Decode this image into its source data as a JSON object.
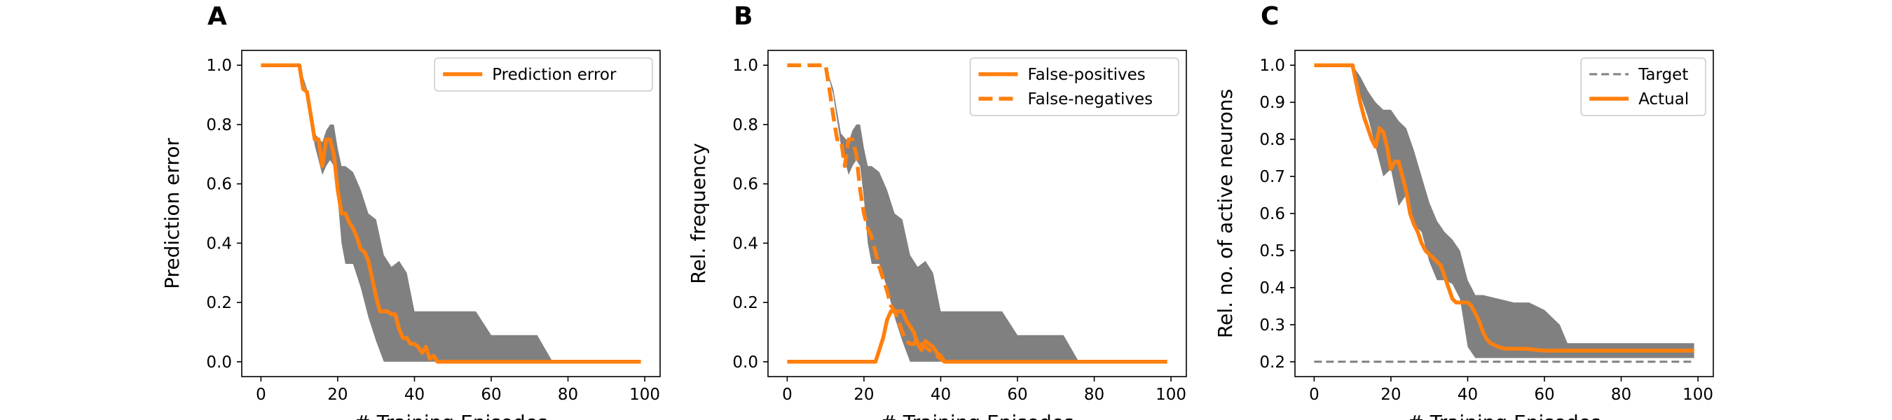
{
  "colors": {
    "accent": "#ff7f0e",
    "band": "#808080",
    "target": "#808080"
  },
  "chart_data": [
    {
      "panel_label": "A",
      "type": "line",
      "title": "",
      "xlabel": "# Training Episodes",
      "ylabel": "Prediction error",
      "xlim": [
        -5,
        104
      ],
      "ylim": [
        -0.05,
        1.05
      ],
      "xticks": [
        0,
        20,
        40,
        60,
        80,
        100
      ],
      "yticks": [
        0.0,
        0.2,
        0.4,
        0.6,
        0.8,
        1.0
      ],
      "ytick_labels": [
        "0.0",
        "0.2",
        "0.4",
        "0.6",
        "0.8",
        "1.0"
      ],
      "legend_position": "top-right",
      "grid": false,
      "band": {
        "x": [
          0,
          10,
          12,
          14,
          16,
          17,
          18,
          19,
          20,
          21,
          22,
          24,
          26,
          28,
          30,
          32,
          34,
          36,
          38,
          40,
          42,
          44,
          46,
          48,
          50,
          56,
          60,
          64,
          68,
          72,
          76,
          80,
          90,
          99
        ],
        "upper": [
          1.0,
          1.0,
          0.92,
          0.77,
          0.74,
          0.78,
          0.8,
          0.8,
          0.72,
          0.66,
          0.66,
          0.64,
          0.58,
          0.5,
          0.48,
          0.36,
          0.32,
          0.34,
          0.3,
          0.17,
          0.17,
          0.17,
          0.17,
          0.17,
          0.17,
          0.17,
          0.09,
          0.09,
          0.09,
          0.09,
          0.0,
          0.0,
          0.0,
          0.0
        ],
        "lower": [
          1.0,
          1.0,
          0.9,
          0.73,
          0.63,
          0.66,
          0.68,
          0.66,
          0.55,
          0.4,
          0.33,
          0.33,
          0.25,
          0.15,
          0.07,
          0.0,
          0.0,
          0.0,
          0.0,
          0.0,
          0.0,
          0.0,
          0.0,
          0.0,
          0.0,
          0.0,
          0.0,
          0.0,
          0.0,
          0.0,
          0.0,
          0.0,
          0.0,
          0.0
        ]
      },
      "series": [
        {
          "name": "Prediction error",
          "style": "solid",
          "x": [
            0,
            10,
            11,
            12,
            13,
            14,
            15,
            16,
            17,
            18,
            19,
            20,
            21,
            22,
            23,
            24,
            25,
            26,
            27,
            28,
            29,
            30,
            31,
            32,
            33,
            34,
            35,
            36,
            37,
            38,
            39,
            40,
            41,
            42,
            43,
            44,
            45,
            46,
            47,
            48,
            49,
            99
          ],
          "y": [
            1.0,
            1.0,
            0.92,
            0.91,
            0.83,
            0.75,
            0.75,
            0.66,
            0.75,
            0.75,
            0.7,
            0.58,
            0.5,
            0.5,
            0.47,
            0.45,
            0.42,
            0.38,
            0.37,
            0.34,
            0.28,
            0.22,
            0.17,
            0.17,
            0.17,
            0.16,
            0.16,
            0.11,
            0.08,
            0.08,
            0.06,
            0.06,
            0.05,
            0.03,
            0.05,
            0.01,
            0.02,
            0.0,
            0.0,
            0.0,
            0.0,
            0.0
          ]
        }
      ]
    },
    {
      "panel_label": "B",
      "type": "line",
      "title": "",
      "xlabel": "# Training Episodes",
      "ylabel": "Rel. frequency",
      "xlim": [
        -5,
        104
      ],
      "ylim": [
        -0.05,
        1.05
      ],
      "xticks": [
        0,
        20,
        40,
        60,
        80,
        100
      ],
      "yticks": [
        0.0,
        0.2,
        0.4,
        0.6,
        0.8,
        1.0
      ],
      "ytick_labels": [
        "0.0",
        "0.2",
        "0.4",
        "0.6",
        "0.8",
        "1.0"
      ],
      "legend_position": "top-right",
      "grid": false,
      "band": {
        "x": [
          0,
          10,
          12,
          14,
          16,
          17,
          18,
          19,
          20,
          21,
          22,
          24,
          26,
          28,
          30,
          32,
          34,
          36,
          38,
          40,
          42,
          44,
          46,
          48,
          50,
          56,
          60,
          64,
          68,
          72,
          76,
          80,
          90,
          99
        ],
        "upper": [
          1.0,
          1.0,
          0.92,
          0.77,
          0.74,
          0.78,
          0.8,
          0.8,
          0.72,
          0.66,
          0.66,
          0.64,
          0.58,
          0.5,
          0.48,
          0.36,
          0.32,
          0.34,
          0.3,
          0.17,
          0.17,
          0.17,
          0.17,
          0.17,
          0.17,
          0.17,
          0.09,
          0.09,
          0.09,
          0.09,
          0.0,
          0.0,
          0.0,
          0.0
        ],
        "lower": [
          1.0,
          1.0,
          0.9,
          0.73,
          0.63,
          0.66,
          0.68,
          0.66,
          0.55,
          0.4,
          0.33,
          0.33,
          0.25,
          0.15,
          0.07,
          0.0,
          0.0,
          0.0,
          0.0,
          0.0,
          0.0,
          0.0,
          0.0,
          0.0,
          0.0,
          0.0,
          0.0,
          0.0,
          0.0,
          0.0,
          0.0,
          0.0,
          0.0,
          0.0
        ]
      },
      "series": [
        {
          "name": "False-positives",
          "style": "solid",
          "x": [
            0,
            22,
            23,
            24,
            25,
            26,
            27,
            28,
            29,
            30,
            31,
            32,
            33,
            34,
            35,
            36,
            37,
            38,
            39,
            40,
            41,
            42,
            99
          ],
          "y": [
            0.0,
            0.0,
            0.0,
            0.04,
            0.08,
            0.14,
            0.17,
            0.17,
            0.17,
            0.17,
            0.14,
            0.12,
            0.1,
            0.06,
            0.04,
            0.07,
            0.06,
            0.05,
            0.03,
            0.02,
            0.0,
            0.0,
            0.0
          ]
        },
        {
          "name": "False-negatives",
          "style": "dashed",
          "x": [
            0,
            10,
            11,
            12,
            13,
            14,
            15,
            16,
            17,
            18,
            19,
            20,
            21,
            22,
            23,
            24,
            25,
            26,
            27,
            28,
            29,
            30,
            31,
            32,
            33,
            34,
            35,
            36,
            37,
            38,
            39,
            40,
            41,
            42,
            99
          ],
          "y": [
            1.0,
            1.0,
            0.92,
            0.83,
            0.75,
            0.75,
            0.66,
            0.75,
            0.75,
            0.7,
            0.58,
            0.5,
            0.45,
            0.42,
            0.37,
            0.32,
            0.28,
            0.24,
            0.19,
            0.17,
            0.14,
            0.1,
            0.07,
            0.06,
            0.06,
            0.08,
            0.06,
            0.05,
            0.04,
            0.03,
            0.02,
            0.01,
            0.0,
            0.0,
            0.0
          ]
        }
      ]
    },
    {
      "panel_label": "C",
      "type": "line",
      "title": "",
      "xlabel": "# Training Episodes",
      "ylabel": "Rel. no. of active neurons",
      "xlim": [
        -5,
        104
      ],
      "ylim": [
        0.16,
        1.04
      ],
      "xticks": [
        0,
        20,
        40,
        60,
        80,
        100
      ],
      "yticks": [
        0.2,
        0.3,
        0.4,
        0.5,
        0.6,
        0.7,
        0.8,
        0.9,
        1.0
      ],
      "ytick_labels": [
        "0.2",
        "0.3",
        "0.4",
        "0.5",
        "0.6",
        "0.7",
        "0.8",
        "0.9",
        "1.0"
      ],
      "legend_position": "top-right",
      "grid": false,
      "band": {
        "x": [
          0,
          10,
          12,
          14,
          16,
          18,
          20,
          22,
          24,
          26,
          28,
          30,
          32,
          34,
          36,
          38,
          40,
          42,
          44,
          48,
          52,
          56,
          60,
          64,
          66,
          70,
          80,
          90,
          99
        ],
        "upper": [
          1.0,
          1.0,
          0.97,
          0.93,
          0.9,
          0.88,
          0.88,
          0.85,
          0.83,
          0.77,
          0.7,
          0.63,
          0.58,
          0.55,
          0.53,
          0.5,
          0.42,
          0.38,
          0.38,
          0.37,
          0.36,
          0.36,
          0.34,
          0.3,
          0.25,
          0.25,
          0.25,
          0.25,
          0.25
        ],
        "lower": [
          1.0,
          1.0,
          0.92,
          0.86,
          0.78,
          0.7,
          0.72,
          0.62,
          0.65,
          0.57,
          0.55,
          0.47,
          0.42,
          0.42,
          0.41,
          0.37,
          0.24,
          0.21,
          0.21,
          0.21,
          0.21,
          0.21,
          0.21,
          0.21,
          0.21,
          0.21,
          0.21,
          0.21,
          0.21
        ]
      },
      "series": [
        {
          "name": "Target",
          "style": "dashed-thin",
          "x": [
            0,
            99
          ],
          "y": [
            0.2,
            0.2
          ]
        },
        {
          "name": "Actual",
          "style": "solid",
          "x": [
            0,
            10,
            11,
            12,
            13,
            14,
            15,
            16,
            17,
            18,
            19,
            20,
            21,
            22,
            23,
            24,
            25,
            26,
            27,
            28,
            29,
            30,
            31,
            32,
            33,
            34,
            35,
            36,
            37,
            38,
            39,
            40,
            41,
            42,
            43,
            44,
            45,
            46,
            48,
            50,
            55,
            60,
            65,
            70,
            80,
            99
          ],
          "y": [
            1.0,
            1.0,
            0.95,
            0.9,
            0.86,
            0.83,
            0.8,
            0.78,
            0.83,
            0.82,
            0.78,
            0.72,
            0.74,
            0.74,
            0.7,
            0.66,
            0.6,
            0.57,
            0.55,
            0.52,
            0.5,
            0.49,
            0.48,
            0.47,
            0.46,
            0.43,
            0.4,
            0.37,
            0.36,
            0.36,
            0.36,
            0.36,
            0.35,
            0.33,
            0.31,
            0.28,
            0.26,
            0.25,
            0.24,
            0.235,
            0.235,
            0.23,
            0.23,
            0.23,
            0.23,
            0.23
          ]
        }
      ]
    }
  ]
}
